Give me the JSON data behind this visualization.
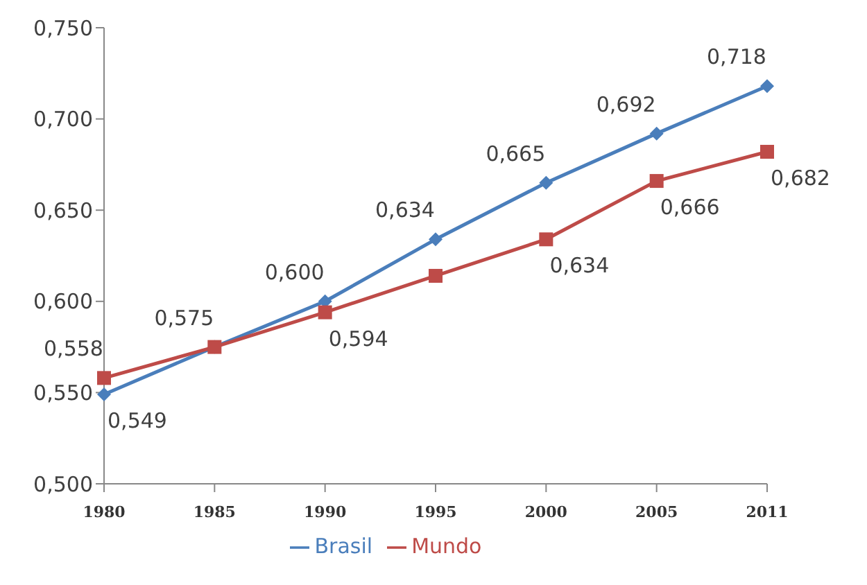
{
  "chart_data": {
    "type": "line",
    "categories": [
      "1980",
      "1985",
      "1990",
      "1995",
      "2000",
      "2005",
      "2011"
    ],
    "series": [
      {
        "name": "Brasil",
        "color": "#4a7ebb",
        "marker": "diamond",
        "values": [
          0.549,
          0.575,
          0.6,
          0.634,
          0.665,
          0.692,
          0.718
        ],
        "value_labels": [
          "0,549",
          "0,575",
          "0,600",
          "0,634",
          "0,665",
          "0,692",
          "0,718"
        ]
      },
      {
        "name": "Mundo",
        "color": "#be4b48",
        "marker": "square",
        "values": [
          0.558,
          0.575,
          0.594,
          0.614,
          0.634,
          0.666,
          0.682
        ],
        "value_labels": [
          "0,558",
          null,
          "0,594",
          null,
          "0,634",
          "0,666",
          "0,682"
        ]
      }
    ],
    "ylim": [
      0.5,
      0.75
    ],
    "yticks": [
      {
        "value": 0.5,
        "label": "0,500"
      },
      {
        "value": 0.55,
        "label": "0,550"
      },
      {
        "value": 0.6,
        "label": "0,600"
      },
      {
        "value": 0.65,
        "label": "0,650"
      },
      {
        "value": 0.7,
        "label": "0,700"
      },
      {
        "value": 0.75,
        "label": "0,750"
      }
    ],
    "grid": false,
    "legend": "bottom",
    "line_style": "solid"
  }
}
